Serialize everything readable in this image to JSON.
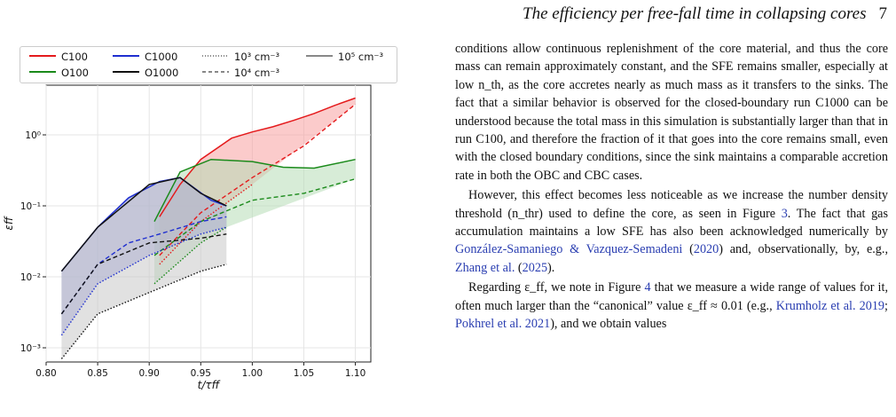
{
  "header": {
    "title": "The efficiency per free-fall time in collapsing cores",
    "page": "7"
  },
  "legend": {
    "col1": [
      {
        "label": "C100",
        "color": "#e41a1c"
      },
      {
        "label": "O100",
        "color": "#1a8a1a"
      }
    ],
    "col2": [
      {
        "label": "C1000",
        "color": "#1f2fd0"
      },
      {
        "label": "O1000",
        "color": "#111111"
      }
    ],
    "col3": [
      {
        "label": "10³ cm⁻³",
        "style": "dotted"
      },
      {
        "label": "10⁴ cm⁻³",
        "style": "dashed"
      }
    ],
    "col4": [
      {
        "label": "10⁵ cm⁻³",
        "style": "solid"
      }
    ]
  },
  "chart_data": {
    "type": "line",
    "xlabel": "t/τff",
    "ylabel": "εff",
    "xlim": [
      0.8,
      1.115
    ],
    "ylim_log10": [
      -3.2,
      0.7
    ],
    "yscale": "log",
    "xticks": [
      "0.80",
      "0.85",
      "0.90",
      "0.95",
      "1.00",
      "1.05",
      "1.10"
    ],
    "yticks": [
      "10⁻³",
      "10⁻²",
      "10⁻¹",
      "10⁰"
    ],
    "grid": true,
    "series": [
      {
        "name": "C100",
        "color": "#e41a1c",
        "fill": "#f7a1a1",
        "solid": [
          [
            0.91,
            0.07
          ],
          [
            0.93,
            0.2
          ],
          [
            0.95,
            0.45
          ],
          [
            0.98,
            0.9
          ],
          [
            1.0,
            1.1
          ],
          [
            1.02,
            1.3
          ],
          [
            1.04,
            1.6
          ],
          [
            1.06,
            2.0
          ],
          [
            1.08,
            2.6
          ],
          [
            1.1,
            3.3
          ]
        ],
        "dashed": [
          [
            0.91,
            0.02
          ],
          [
            0.95,
            0.08
          ],
          [
            1.0,
            0.25
          ],
          [
            1.05,
            0.7
          ],
          [
            1.1,
            2.7
          ]
        ],
        "dotted": [
          [
            0.91,
            0.015
          ],
          [
            0.95,
            0.06
          ],
          [
            1.0,
            0.2
          ]
        ]
      },
      {
        "name": "O100",
        "color": "#1a8a1a",
        "fill": "#b7dcb7",
        "solid": [
          [
            0.905,
            0.06
          ],
          [
            0.93,
            0.3
          ],
          [
            0.96,
            0.45
          ],
          [
            1.0,
            0.42
          ],
          [
            1.03,
            0.35
          ],
          [
            1.06,
            0.34
          ],
          [
            1.1,
            0.45
          ]
        ],
        "dashed": [
          [
            0.905,
            0.02
          ],
          [
            0.95,
            0.06
          ],
          [
            1.0,
            0.12
          ],
          [
            1.05,
            0.15
          ],
          [
            1.1,
            0.24
          ]
        ],
        "dotted": [
          [
            0.905,
            0.008
          ],
          [
            0.95,
            0.03
          ],
          [
            0.975,
            0.05
          ]
        ]
      },
      {
        "name": "C1000",
        "color": "#1f2fd0",
        "fill": "#8c93d8",
        "solid": [
          [
            0.815,
            0.012
          ],
          [
            0.85,
            0.05
          ],
          [
            0.88,
            0.13
          ],
          [
            0.91,
            0.22
          ],
          [
            0.93,
            0.25
          ],
          [
            0.96,
            0.12
          ],
          [
            0.975,
            0.1
          ]
        ],
        "dashed": [
          [
            0.815,
            0.003
          ],
          [
            0.85,
            0.015
          ],
          [
            0.88,
            0.03
          ],
          [
            0.91,
            0.04
          ],
          [
            0.95,
            0.06
          ],
          [
            0.975,
            0.07
          ]
        ],
        "dotted": [
          [
            0.815,
            0.0015
          ],
          [
            0.85,
            0.008
          ],
          [
            0.9,
            0.02
          ],
          [
            0.95,
            0.04
          ],
          [
            0.975,
            0.05
          ]
        ]
      },
      {
        "name": "O1000",
        "color": "#111111",
        "fill": "#c8c8c8",
        "solid": [
          [
            0.815,
            0.012
          ],
          [
            0.85,
            0.05
          ],
          [
            0.9,
            0.2
          ],
          [
            0.93,
            0.25
          ],
          [
            0.95,
            0.15
          ],
          [
            0.975,
            0.1
          ]
        ],
        "dashed": [
          [
            0.815,
            0.003
          ],
          [
            0.85,
            0.015
          ],
          [
            0.9,
            0.03
          ],
          [
            0.95,
            0.035
          ],
          [
            0.975,
            0.04
          ]
        ],
        "dotted": [
          [
            0.815,
            0.0007
          ],
          [
            0.85,
            0.003
          ],
          [
            0.9,
            0.006
          ],
          [
            0.95,
            0.012
          ],
          [
            0.975,
            0.015
          ]
        ]
      }
    ]
  },
  "body": {
    "p1": "conditions allow continuous replenishment of the core material, and thus the core mass can remain approximately constant, and the SFE remains smaller, especially at low n_th, as the core accretes nearly as much mass as it transfers to the sinks. The fact that a similar behavior is observed for the closed-boundary run C1000 can be understood because the total mass in this simulation is substantially larger than that in run C100, and therefore the fraction of it that goes into the core remains small, even with the closed boundary conditions, since the sink maintains a comparable accretion rate in both the OBC and CBC cases.",
    "p2_a": "However, this effect becomes less noticeable as we increase the number density threshold (n_thr) used to define the core, as seen in Figure ",
    "p2_fig": "3",
    "p2_b": ". The fact that gas accumulation maintains a low SFE has also been acknowledged numerically by ",
    "p2_ref1": "González-Samaniego & Vazquez-Semadeni",
    "p2_ref1y": "2020",
    "p2_c": " and, observationally, by, e.g., ",
    "p2_ref2": "Zhang et al.",
    "p2_ref2y": "2025",
    "p2_d": ").",
    "p3_a": "Regarding ε_ff, we note in Figure ",
    "p3_fig": "4",
    "p3_b": " that we measure a wide range of values for it, often much larger than the “canonical” value ε_ff ≈ 0.01 (e.g., ",
    "p3_ref1": "Krumholz et al. 2019",
    "p3_sep": "; ",
    "p3_ref2": "Pokhrel et al. 2021",
    "p3_c": "), and we obtain values"
  }
}
